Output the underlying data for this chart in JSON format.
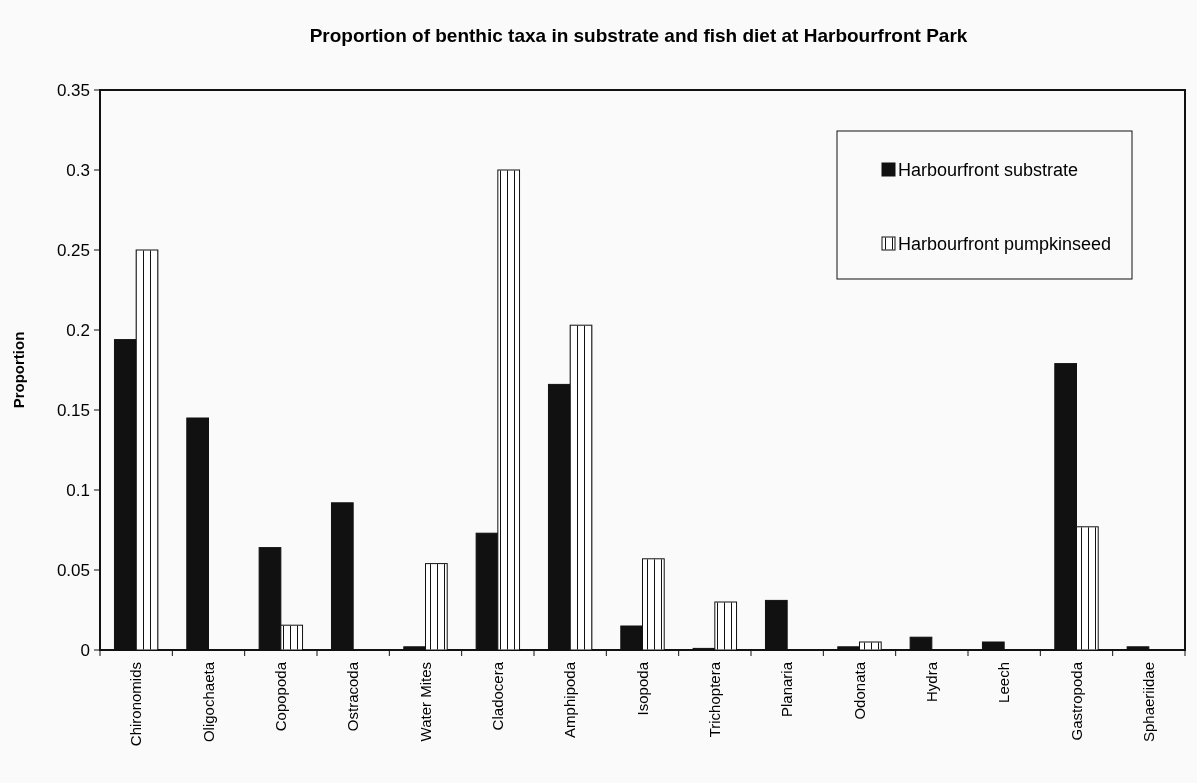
{
  "chart_data": {
    "type": "bar",
    "title": "Proportion of benthic taxa in substrate and fish diet at Harbourfront Park",
    "ylabel": "Proportion",
    "categories": [
      "Chironomids",
      "Oligochaeta",
      "Copopoda",
      "Ostracoda",
      "Water Mites",
      "Cladocera",
      "Amphipoda",
      "Isopoda",
      "Trichoptera",
      "Planaria",
      "Odonata",
      "Hydra",
      "Leech",
      "Gastropoda",
      "Sphaeriidae"
    ],
    "series": [
      {
        "name": "Harbourfront substrate",
        "color": "#111111",
        "values": [
          0.194,
          0.145,
          0.064,
          0.092,
          0.002,
          0.073,
          0.166,
          0.015,
          0.001,
          0.031,
          0.002,
          0.008,
          0.005,
          0.179,
          0.002
        ]
      },
      {
        "name": "Harbourfront pumpkinseed",
        "color": "#ffffff",
        "values": [
          0.25,
          0,
          0.0155,
          0,
          0.054,
          0.3,
          0.203,
          0.057,
          0.03,
          0,
          0.005,
          0,
          0,
          0.077,
          0
        ]
      }
    ],
    "ylim": [
      0,
      0.35
    ],
    "yticks": [
      0,
      0.05,
      0.1,
      0.15,
      0.2,
      0.25,
      0.3,
      0.35
    ],
    "grid": false,
    "legend": "top right"
  }
}
